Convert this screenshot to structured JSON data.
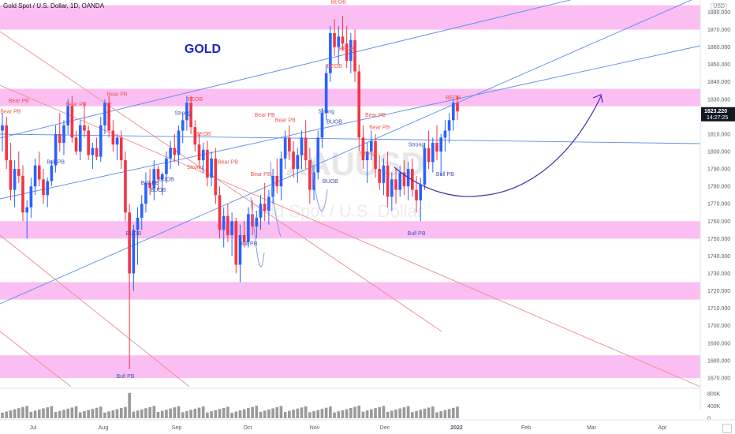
{
  "header": {
    "symbol_line": "Gold Spot / U.S. Dollar, 1D, OANDA",
    "currency": "USD",
    "title_annotation": "GOLD",
    "watermark_symbol": "XAUUSD",
    "watermark_name": "Gold Spot / U.S. Dollar"
  },
  "price_scale": {
    "ticks": [
      "1880.000",
      "1870.000",
      "1860.000",
      "1850.000",
      "1840.000",
      "1830.000",
      "1820.000",
      "1810.000",
      "1800.000",
      "1790.000",
      "1780.000",
      "1770.000",
      "1760.000",
      "1750.000",
      "1740.000",
      "1730.000",
      "1720.000",
      "1710.000",
      "1700.000",
      "1690.000",
      "1680.000",
      "1670.000"
    ],
    "last_price": "1823.220",
    "countdown": "14:27:25"
  },
  "time_scale": {
    "ticks": [
      "Jul",
      "Aug",
      "Sep",
      "Oct",
      "Nov",
      "Dec",
      "2022",
      "Feb",
      "Mar",
      "Apr"
    ]
  },
  "volume_scale": {
    "ticks": [
      "800K",
      "400K",
      "0"
    ]
  },
  "colors": {
    "up": "#2962ff",
    "down": "#f23645",
    "zone": "#f9b3f0",
    "channel_blue": "#5b8def",
    "channel_red": "#ef8a8a",
    "projection": "#4a2bb0",
    "label_red": "#ef5350",
    "label_blue": "#3f51b5",
    "title_blue": "#1e22c8"
  },
  "chart_data": {
    "type": "candlestick",
    "symbol": "XAUUSD",
    "timeframe": "1D",
    "ylim": [
      1665,
      1887
    ],
    "zones": [
      [
        1870,
        1884
      ],
      [
        1826,
        1836
      ],
      [
        1750,
        1760
      ],
      [
        1715,
        1725
      ],
      [
        1670,
        1683
      ]
    ],
    "candles_approx": [
      [
        1812,
        1822,
        1800,
        1815
      ],
      [
        1815,
        1820,
        1790,
        1795
      ],
      [
        1795,
        1805,
        1772,
        1778
      ],
      [
        1778,
        1795,
        1768,
        1790
      ],
      [
        1790,
        1800,
        1782,
        1786
      ],
      [
        1786,
        1792,
        1760,
        1765
      ],
      [
        1765,
        1772,
        1750,
        1768
      ],
      [
        1768,
        1785,
        1762,
        1780
      ],
      [
        1780,
        1796,
        1775,
        1792
      ],
      [
        1792,
        1800,
        1780,
        1784
      ],
      [
        1784,
        1790,
        1770,
        1775
      ],
      [
        1775,
        1785,
        1768,
        1783
      ],
      [
        1783,
        1795,
        1780,
        1792
      ],
      [
        1792,
        1815,
        1788,
        1810
      ],
      [
        1810,
        1822,
        1800,
        1805
      ],
      [
        1805,
        1818,
        1798,
        1815
      ],
      [
        1815,
        1830,
        1810,
        1826
      ],
      [
        1826,
        1832,
        1805,
        1808
      ],
      [
        1808,
        1812,
        1798,
        1800
      ],
      [
        1800,
        1818,
        1795,
        1815
      ],
      [
        1815,
        1828,
        1808,
        1812
      ],
      [
        1812,
        1815,
        1795,
        1798
      ],
      [
        1798,
        1805,
        1790,
        1802
      ],
      [
        1802,
        1808,
        1795,
        1797
      ],
      [
        1797,
        1820,
        1794,
        1815
      ],
      [
        1815,
        1830,
        1810,
        1828
      ],
      [
        1828,
        1832,
        1808,
        1812
      ],
      [
        1812,
        1818,
        1800,
        1804
      ],
      [
        1804,
        1810,
        1795,
        1808
      ],
      [
        1808,
        1812,
        1790,
        1795
      ],
      [
        1795,
        1800,
        1760,
        1765
      ],
      [
        1765,
        1770,
        1675,
        1730
      ],
      [
        1730,
        1758,
        1720,
        1755
      ],
      [
        1755,
        1768,
        1735,
        1762
      ],
      [
        1762,
        1775,
        1755,
        1770
      ],
      [
        1770,
        1788,
        1765,
        1782
      ],
      [
        1782,
        1790,
        1775,
        1779
      ],
      [
        1779,
        1795,
        1772,
        1790
      ],
      [
        1790,
        1792,
        1778,
        1784
      ],
      [
        1784,
        1788,
        1775,
        1787
      ],
      [
        1787,
        1800,
        1782,
        1796
      ],
      [
        1796,
        1806,
        1790,
        1802
      ],
      [
        1802,
        1810,
        1794,
        1798
      ],
      [
        1798,
        1815,
        1792,
        1812
      ],
      [
        1812,
        1822,
        1805,
        1818
      ],
      [
        1818,
        1832,
        1812,
        1828
      ],
      [
        1828,
        1832,
        1810,
        1814
      ],
      [
        1814,
        1818,
        1800,
        1804
      ],
      [
        1804,
        1810,
        1790,
        1795
      ],
      [
        1795,
        1805,
        1788,
        1801
      ],
      [
        1801,
        1806,
        1780,
        1785
      ],
      [
        1785,
        1800,
        1780,
        1796
      ],
      [
        1796,
        1802,
        1770,
        1775
      ],
      [
        1775,
        1780,
        1750,
        1755
      ],
      [
        1755,
        1768,
        1745,
        1763
      ],
      [
        1763,
        1770,
        1748,
        1752
      ],
      [
        1752,
        1765,
        1740,
        1760
      ],
      [
        1760,
        1762,
        1730,
        1735
      ],
      [
        1735,
        1758,
        1725,
        1752
      ],
      [
        1752,
        1760,
        1745,
        1748
      ],
      [
        1748,
        1768,
        1745,
        1764
      ],
      [
        1764,
        1772,
        1752,
        1757
      ],
      [
        1757,
        1766,
        1750,
        1762
      ],
      [
        1762,
        1775,
        1755,
        1770
      ],
      [
        1770,
        1782,
        1760,
        1766
      ],
      [
        1766,
        1778,
        1758,
        1774
      ],
      [
        1774,
        1790,
        1770,
        1786
      ],
      [
        1786,
        1796,
        1776,
        1780
      ],
      [
        1780,
        1800,
        1772,
        1796
      ],
      [
        1796,
        1812,
        1790,
        1808
      ],
      [
        1808,
        1815,
        1795,
        1800
      ],
      [
        1800,
        1806,
        1785,
        1790
      ],
      [
        1790,
        1802,
        1782,
        1798
      ],
      [
        1798,
        1812,
        1790,
        1808
      ],
      [
        1808,
        1818,
        1790,
        1795
      ],
      [
        1795,
        1802,
        1770,
        1778
      ],
      [
        1778,
        1792,
        1772,
        1788
      ],
      [
        1788,
        1812,
        1784,
        1808
      ],
      [
        1808,
        1825,
        1802,
        1822
      ],
      [
        1822,
        1850,
        1818,
        1845
      ],
      [
        1845,
        1872,
        1840,
        1868
      ],
      [
        1868,
        1876,
        1855,
        1860
      ],
      [
        1860,
        1872,
        1850,
        1866
      ],
      [
        1866,
        1878,
        1858,
        1862
      ],
      [
        1862,
        1872,
        1848,
        1852
      ],
      [
        1852,
        1868,
        1845,
        1864
      ],
      [
        1864,
        1870,
        1840,
        1846
      ],
      [
        1846,
        1850,
        1800,
        1808
      ],
      [
        1808,
        1815,
        1790,
        1795
      ],
      [
        1795,
        1805,
        1782,
        1800
      ],
      [
        1800,
        1812,
        1795,
        1806
      ],
      [
        1806,
        1810,
        1785,
        1790
      ],
      [
        1790,
        1798,
        1778,
        1782
      ],
      [
        1782,
        1796,
        1775,
        1792
      ],
      [
        1792,
        1800,
        1768,
        1774
      ],
      [
        1774,
        1788,
        1766,
        1784
      ],
      [
        1784,
        1790,
        1770,
        1778
      ],
      [
        1778,
        1792,
        1774,
        1788
      ],
      [
        1788,
        1795,
        1775,
        1780
      ],
      [
        1780,
        1794,
        1772,
        1790
      ],
      [
        1790,
        1796,
        1774,
        1778
      ],
      [
        1778,
        1786,
        1765,
        1772
      ],
      [
        1772,
        1785,
        1760,
        1781
      ],
      [
        1781,
        1805,
        1778,
        1802
      ],
      [
        1802,
        1812,
        1790,
        1794
      ],
      [
        1794,
        1808,
        1788,
        1805
      ],
      [
        1805,
        1815,
        1795,
        1800
      ],
      [
        1800,
        1810,
        1786,
        1808
      ],
      [
        1808,
        1818,
        1800,
        1812
      ],
      [
        1812,
        1822,
        1805,
        1818
      ],
      [
        1818,
        1830,
        1812,
        1828
      ],
      [
        1828,
        1832,
        1818,
        1823
      ]
    ],
    "annotations": [
      {
        "text": "BEOB",
        "kind": "bear",
        "x_index": 82,
        "price": 1885
      },
      {
        "text": "BEOB",
        "kind": "bear",
        "x_index": 110,
        "price": 1830
      },
      {
        "text": "Bear PB",
        "kind": "bear",
        "x_index": 28,
        "price": 1832
      },
      {
        "text": "Bear PB",
        "kind": "bear",
        "x_index": 4,
        "price": 1828
      },
      {
        "text": "Bear PB",
        "kind": "bear",
        "x_index": 18,
        "price": 1826
      },
      {
        "text": "Bear PB",
        "kind": "bear",
        "x_index": 2,
        "price": 1822
      },
      {
        "text": "Bear PB",
        "kind": "bear",
        "x_index": 64,
        "price": 1820
      },
      {
        "text": "Bear PB",
        "kind": "bear",
        "x_index": 69,
        "price": 1817
      },
      {
        "text": "Bear PB",
        "kind": "bear",
        "x_index": 91,
        "price": 1820
      },
      {
        "text": "Bear PB",
        "kind": "bear",
        "x_index": 92,
        "price": 1813
      },
      {
        "text": "Bear PB",
        "kind": "bear",
        "x_index": 55,
        "price": 1793
      },
      {
        "text": "Bear PB",
        "kind": "bear",
        "x_index": 63,
        "price": 1786
      },
      {
        "text": "Bull PB",
        "kind": "bull",
        "x_index": 13,
        "price": 1793
      },
      {
        "text": "Bull PB",
        "kind": "bull",
        "x_index": 36,
        "price": 1781
      },
      {
        "text": "Bull PB",
        "kind": "bull",
        "x_index": 60,
        "price": 1746
      },
      {
        "text": "Bull PB",
        "kind": "bull",
        "x_index": 101,
        "price": 1752
      },
      {
        "text": "Bull PB",
        "kind": "bull",
        "x_index": 108,
        "price": 1786
      },
      {
        "text": "Bull PB",
        "kind": "bull",
        "x_index": 30,
        "price": 1670
      },
      {
        "text": "Strong",
        "kind": "bull",
        "x_index": 44,
        "price": 1821
      },
      {
        "text": "Strong",
        "kind": "bull",
        "x_index": 79,
        "price": 1822
      },
      {
        "text": "Strong",
        "kind": "bull",
        "x_index": 101,
        "price": 1803
      },
      {
        "text": "Strong",
        "kind": "bear",
        "x_index": 47,
        "price": 1790
      },
      {
        "text": "Strong",
        "kind": "bear",
        "x_index": 89,
        "price": 1798
      },
      {
        "text": "BUOB",
        "kind": "bull",
        "x_index": 40,
        "price": 1783
      },
      {
        "text": "BUOB",
        "kind": "bull",
        "x_index": 38,
        "price": 1777
      },
      {
        "text": "BUOB",
        "kind": "bull",
        "x_index": 81,
        "price": 1816
      },
      {
        "text": "BUOB",
        "kind": "bull",
        "x_index": 80,
        "price": 1782
      },
      {
        "text": "BUOB",
        "kind": "bull",
        "x_index": 32,
        "price": 1752
      },
      {
        "text": "BEOB",
        "kind": "bear",
        "x_index": 47,
        "price": 1829
      },
      {
        "text": "BEOB",
        "kind": "bear",
        "x_index": 49,
        "price": 1809
      },
      {
        "text": "BEOB",
        "kind": "bear",
        "x_index": 84,
        "price": 1858
      },
      {
        "text": "BEOB",
        "kind": "bear",
        "x_index": 81,
        "price": 1848
      }
    ]
  }
}
